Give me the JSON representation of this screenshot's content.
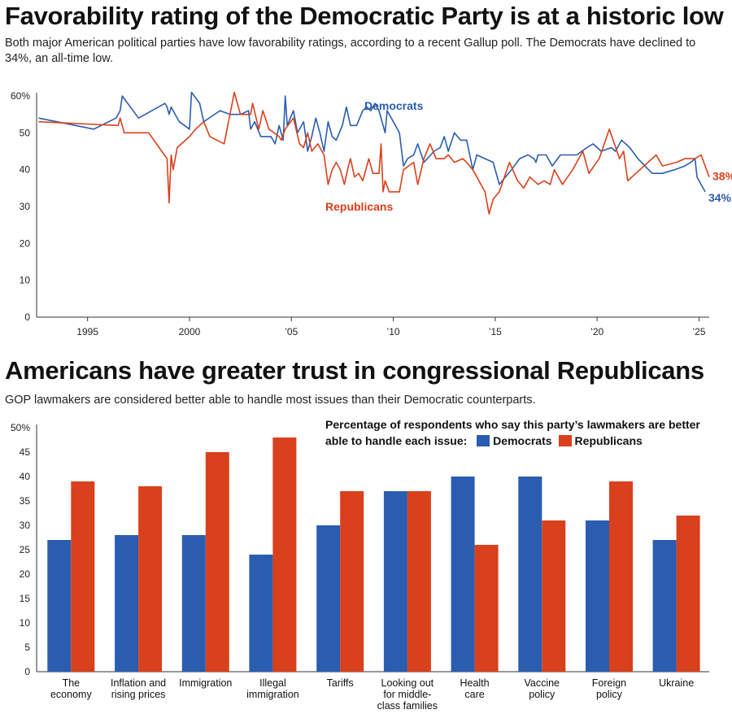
{
  "headings": {
    "title1": "Favorability rating of the Democratic Party is at a historic low",
    "subtitle1": "Both major American political parties have low favorability ratings, according to a recent Gallup poll. The Democrats have declined to 34%, an all-time low.",
    "title2": "Americans have greater trust in congressional Republicans",
    "subtitle2": "GOP lawmakers are considered better able to handle most issues than their Democratic counterparts."
  },
  "colors": {
    "democrats": "#2a5db0",
    "republicans": "#d9401c",
    "axis": "#333333"
  },
  "chart_data": [
    {
      "type": "line",
      "ylim": [
        0,
        60
      ],
      "xlim": [
        1992.5,
        2025.5
      ],
      "y_ticks": [
        "0",
        "10",
        "20",
        "30",
        "40",
        "50",
        "60%"
      ],
      "x_ticks": [
        {
          "value": 1995,
          "label": "1995"
        },
        {
          "value": 2000,
          "label": "2000"
        },
        {
          "value": 2005,
          "label": "’05"
        },
        {
          "value": 2010,
          "label": "’10"
        },
        {
          "value": 2015,
          "label": "’15"
        },
        {
          "value": 2020,
          "label": "’20"
        },
        {
          "value": 2025,
          "label": "’25"
        }
      ],
      "series": [
        {
          "name": "Democrats",
          "end_label": "34%",
          "points": [
            [
              1992.6,
              54
            ],
            [
              1995.3,
              51
            ],
            [
              1996.4,
              54
            ],
            [
              1996.6,
              56
            ],
            [
              1996.7,
              60
            ],
            [
              1997.5,
              54
            ],
            [
              1998.8,
              58
            ],
            [
              1998.9,
              57
            ],
            [
              1999.0,
              55
            ],
            [
              1999.1,
              57
            ],
            [
              1999.5,
              53
            ],
            [
              2000.0,
              51
            ],
            [
              2000.1,
              61
            ],
            [
              2000.5,
              58
            ],
            [
              2000.7,
              53
            ],
            [
              2001.5,
              56
            ],
            [
              2002.0,
              55
            ],
            [
              2002.5,
              55
            ],
            [
              2002.9,
              56
            ],
            [
              2003.0,
              51
            ],
            [
              2003.2,
              53
            ],
            [
              2003.5,
              49
            ],
            [
              2004.0,
              49
            ],
            [
              2004.2,
              47
            ],
            [
              2004.4,
              52
            ],
            [
              2004.6,
              48
            ],
            [
              2004.7,
              60
            ],
            [
              2004.8,
              52
            ],
            [
              2005.1,
              56
            ],
            [
              2005.3,
              50
            ],
            [
              2005.6,
              53
            ],
            [
              2005.8,
              45
            ],
            [
              2006.0,
              49
            ],
            [
              2006.2,
              54
            ],
            [
              2006.4,
              50
            ],
            [
              2006.6,
              45
            ],
            [
              2006.8,
              53
            ],
            [
              2007.0,
              49
            ],
            [
              2007.2,
              48
            ],
            [
              2007.5,
              52
            ],
            [
              2007.7,
              57
            ],
            [
              2007.9,
              52
            ],
            [
              2008.2,
              52
            ],
            [
              2008.5,
              56
            ],
            [
              2008.7,
              57
            ],
            [
              2008.9,
              56
            ],
            [
              2009.0,
              57
            ],
            [
              2009.1,
              58
            ],
            [
              2009.3,
              56
            ],
            [
              2009.6,
              50
            ],
            [
              2009.7,
              56
            ],
            [
              2010.0,
              53
            ],
            [
              2010.3,
              50
            ],
            [
              2010.5,
              41
            ],
            [
              2010.7,
              43
            ],
            [
              2011.0,
              44
            ],
            [
              2011.2,
              47
            ],
            [
              2011.5,
              42
            ],
            [
              2012.0,
              45
            ],
            [
              2012.3,
              46
            ],
            [
              2012.5,
              49
            ],
            [
              2012.7,
              45
            ],
            [
              2013.0,
              50
            ],
            [
              2013.3,
              48
            ],
            [
              2013.6,
              48
            ],
            [
              2013.9,
              40
            ],
            [
              2014.1,
              44
            ],
            [
              2014.5,
              43
            ],
            [
              2014.9,
              42
            ],
            [
              2015.2,
              36
            ],
            [
              2015.5,
              38
            ],
            [
              2015.8,
              40
            ],
            [
              2016.2,
              43
            ],
            [
              2016.6,
              44
            ],
            [
              2016.9,
              43
            ],
            [
              2017.0,
              42
            ],
            [
              2017.1,
              44
            ],
            [
              2017.5,
              44
            ],
            [
              2017.8,
              41
            ],
            [
              2018.2,
              44
            ],
            [
              2018.5,
              44
            ],
            [
              2019.0,
              44
            ],
            [
              2019.5,
              46
            ],
            [
              2019.8,
              47
            ],
            [
              2020.2,
              45
            ],
            [
              2020.7,
              46
            ],
            [
              2020.9,
              45
            ],
            [
              2021.2,
              48
            ],
            [
              2021.6,
              46
            ],
            [
              2022.0,
              43
            ],
            [
              2022.7,
              39
            ],
            [
              2023.2,
              39
            ],
            [
              2023.8,
              40
            ],
            [
              2024.3,
              41
            ],
            [
              2024.6,
              42
            ],
            [
              2024.8,
              43
            ],
            [
              2024.9,
              38
            ],
            [
              2025.3,
              34
            ]
          ]
        },
        {
          "name": "Republicans",
          "end_label": "38%",
          "points": [
            [
              1992.6,
              53
            ],
            [
              1996.5,
              52
            ],
            [
              1996.6,
              54
            ],
            [
              1996.8,
              50
            ],
            [
              1998.0,
              50
            ],
            [
              1998.9,
              43
            ],
            [
              1999.0,
              31
            ],
            [
              1999.1,
              44
            ],
            [
              1999.2,
              40
            ],
            [
              1999.4,
              46
            ],
            [
              2000.0,
              49
            ],
            [
              2000.3,
              51
            ],
            [
              2000.7,
              53
            ],
            [
              2001.0,
              49
            ],
            [
              2001.7,
              47
            ],
            [
              2002.2,
              61
            ],
            [
              2002.5,
              55
            ],
            [
              2003.0,
              55
            ],
            [
              2003.1,
              58
            ],
            [
              2003.4,
              51
            ],
            [
              2003.6,
              56
            ],
            [
              2003.9,
              51
            ],
            [
              2004.4,
              49
            ],
            [
              2004.5,
              48
            ],
            [
              2004.7,
              51
            ],
            [
              2005.1,
              54
            ],
            [
              2005.4,
              47
            ],
            [
              2005.6,
              46
            ],
            [
              2005.8,
              50
            ],
            [
              2006.0,
              45
            ],
            [
              2006.3,
              47
            ],
            [
              2006.6,
              44
            ],
            [
              2006.7,
              40
            ],
            [
              2006.8,
              36
            ],
            [
              2007.0,
              40
            ],
            [
              2007.2,
              42
            ],
            [
              2007.4,
              40
            ],
            [
              2007.6,
              36
            ],
            [
              2007.8,
              41
            ],
            [
              2007.9,
              43
            ],
            [
              2008.1,
              38
            ],
            [
              2008.3,
              39
            ],
            [
              2008.5,
              37
            ],
            [
              2008.8,
              43
            ],
            [
              2009.0,
              39
            ],
            [
              2009.3,
              39
            ],
            [
              2009.4,
              47
            ],
            [
              2009.5,
              34
            ],
            [
              2009.6,
              37
            ],
            [
              2009.8,
              34
            ],
            [
              2010.3,
              34
            ],
            [
              2010.5,
              40
            ],
            [
              2011.0,
              42
            ],
            [
              2011.2,
              36
            ],
            [
              2011.5,
              43
            ],
            [
              2011.8,
              47
            ],
            [
              2012.1,
              43
            ],
            [
              2012.5,
              43
            ],
            [
              2012.7,
              44
            ],
            [
              2013.0,
              42
            ],
            [
              2013.4,
              43
            ],
            [
              2013.6,
              42
            ],
            [
              2013.9,
              40
            ],
            [
              2014.1,
              38
            ],
            [
              2014.5,
              34
            ],
            [
              2014.7,
              28
            ],
            [
              2014.9,
              32
            ],
            [
              2015.2,
              34
            ],
            [
              2015.7,
              42
            ],
            [
              2016.1,
              37
            ],
            [
              2016.4,
              35
            ],
            [
              2016.7,
              38
            ],
            [
              2017.1,
              36
            ],
            [
              2017.4,
              37
            ],
            [
              2017.7,
              36
            ],
            [
              2017.9,
              40
            ],
            [
              2018.3,
              36
            ],
            [
              2018.8,
              40
            ],
            [
              2019.3,
              45
            ],
            [
              2019.6,
              39
            ],
            [
              2020.1,
              43
            ],
            [
              2020.6,
              51
            ],
            [
              2021.1,
              43
            ],
            [
              2021.3,
              45
            ],
            [
              2021.5,
              37
            ],
            [
              2022.1,
              40
            ],
            [
              2022.9,
              44
            ],
            [
              2023.2,
              41
            ],
            [
              2023.9,
              42
            ],
            [
              2024.3,
              43
            ],
            [
              2024.8,
              43
            ],
            [
              2025.1,
              44
            ],
            [
              2025.5,
              38
            ]
          ]
        }
      ]
    },
    {
      "type": "bar",
      "legend_title": "Percentage of respondents who say this party’s lawmakers are better able to handle each issue:",
      "ylim": [
        0,
        50
      ],
      "y_ticks": [
        "0",
        "5",
        "10",
        "15",
        "20",
        "25",
        "30",
        "35",
        "40",
        "45",
        "50%"
      ],
      "categories": [
        [
          "The",
          "economy"
        ],
        [
          "Inflation and",
          "rising prices"
        ],
        [
          "Immigration"
        ],
        [
          "Illegal",
          "immigration"
        ],
        [
          "Tariffs"
        ],
        [
          "Looking out",
          "for middle-",
          "class families"
        ],
        [
          "Health",
          "care"
        ],
        [
          "Vaccine",
          "policy"
        ],
        [
          "Foreign",
          "policy"
        ],
        [
          "Ukraine"
        ]
      ],
      "series": [
        {
          "name": "Democrats",
          "values": [
            27,
            28,
            28,
            24,
            30,
            37,
            40,
            40,
            31,
            27
          ]
        },
        {
          "name": "Republicans",
          "values": [
            39,
            38,
            45,
            48,
            37,
            37,
            26,
            31,
            39,
            32
          ]
        }
      ]
    }
  ]
}
